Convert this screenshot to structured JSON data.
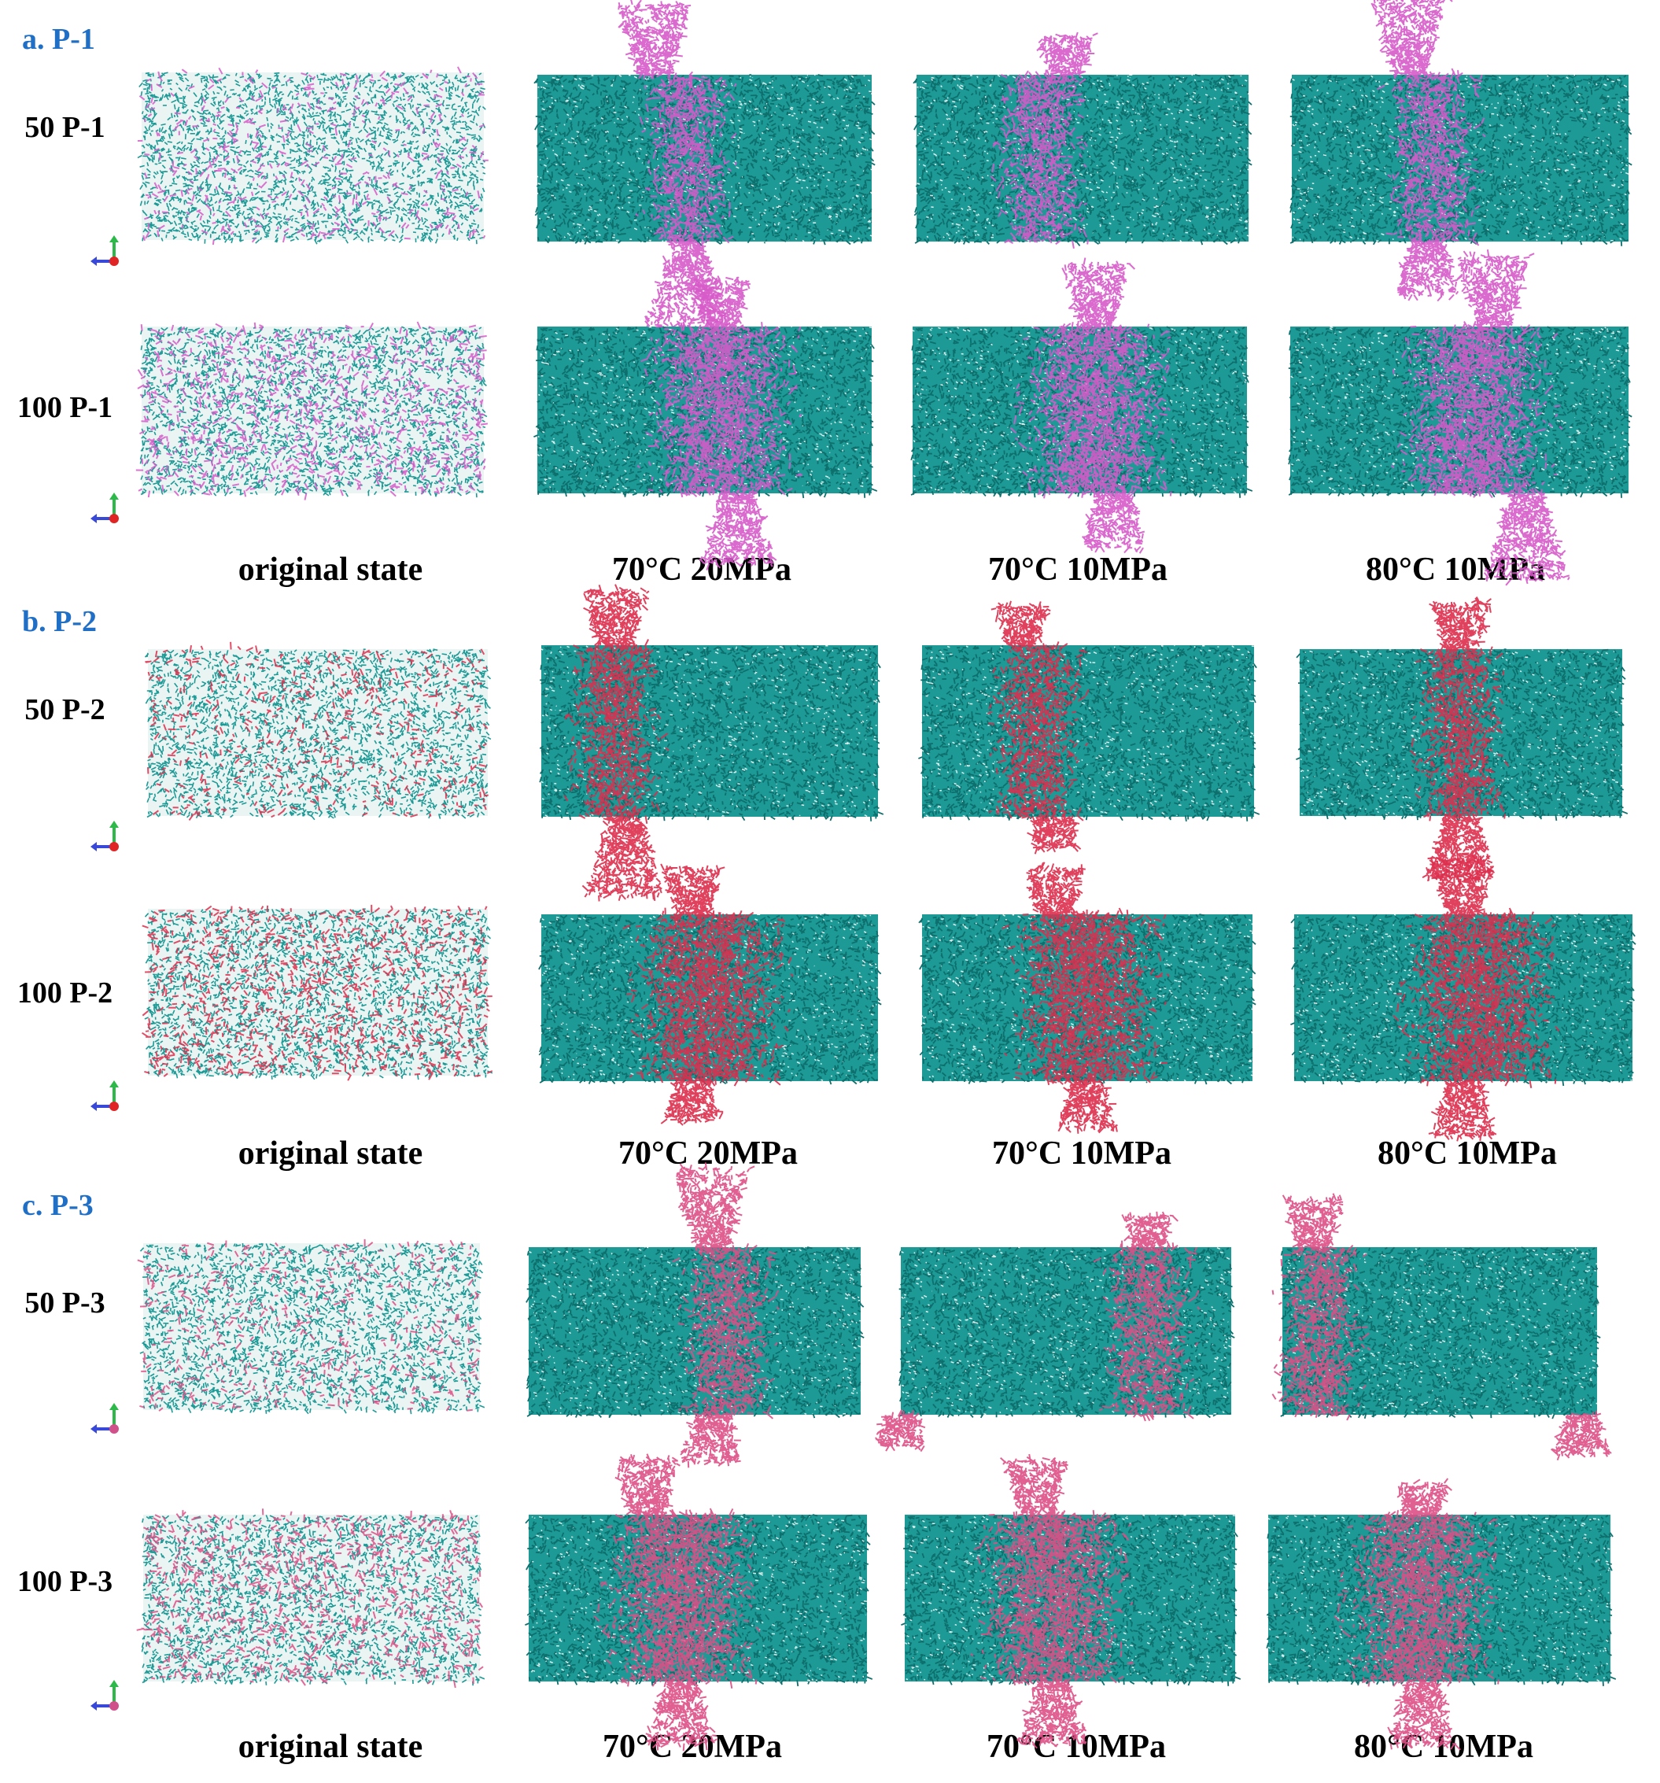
{
  "colors": {
    "teal": "#1d9a96",
    "section_title": "#1f6fc7",
    "p1_polymer": "#d65ac9",
    "p2_polymer": "#dd2e4c",
    "p3_polymer": "#de4f86"
  },
  "sections": [
    {
      "title": "a. P-1",
      "polymer_key": "p1_polymer",
      "rows": [
        {
          "label": "50 P-1",
          "density": "low"
        },
        {
          "label": "100 P-1",
          "density": "high"
        }
      ],
      "column_labels": [
        "original state",
        "70°C 20MPa",
        "70°C 10MPa",
        "80°C 10MPa"
      ]
    },
    {
      "title": "b. P-2",
      "polymer_key": "p2_polymer",
      "rows": [
        {
          "label": "50 P-2",
          "density": "low"
        },
        {
          "label": "100 P-2",
          "density": "high"
        }
      ],
      "column_labels": [
        "original state",
        "70°C 20MPa",
        "70°C 10MPa",
        "80°C 10MPa"
      ]
    },
    {
      "title": "c. P-3",
      "polymer_key": "p3_polymer",
      "rows": [
        {
          "label": "50 P-3",
          "density": "low"
        },
        {
          "label": "100 P-3",
          "density": "high"
        }
      ],
      "column_labels": [
        "original state",
        "70°C 20MPa",
        "70°C 10MPa",
        "80°C 10MPa"
      ]
    }
  ],
  "icons": {
    "axis_indicator": "xyz-axis-icon"
  }
}
